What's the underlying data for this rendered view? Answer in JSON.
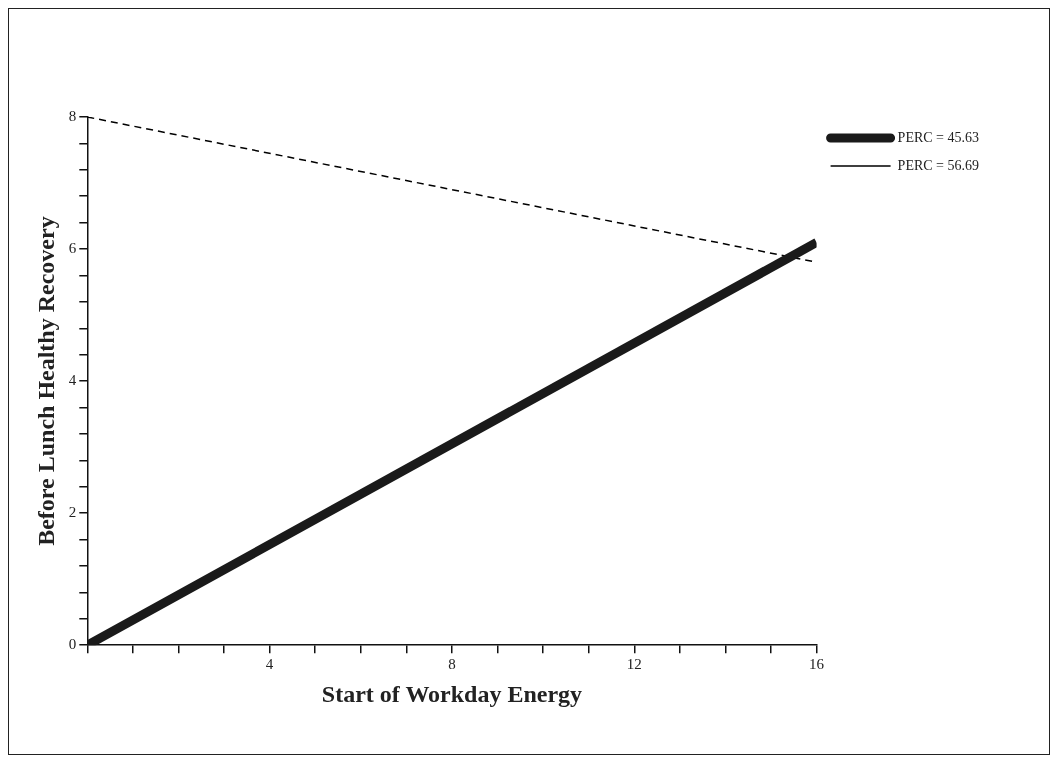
{
  "chart_data": {
    "type": "line",
    "xlabel": "Start of Workday Energy",
    "ylabel": "Before Lunch Healthy Recovery",
    "xlim": [
      0,
      16
    ],
    "xticks": [
      {
        "value": 0,
        "label": null
      },
      {
        "value": 1,
        "label": null
      },
      {
        "value": 2,
        "label": null
      },
      {
        "value": 3,
        "label": null
      },
      4,
      {
        "value": 5,
        "label": null
      },
      {
        "value": 6,
        "label": null
      },
      {
        "value": 7,
        "label": null
      },
      8,
      {
        "value": 9,
        "label": null
      },
      {
        "value": 10,
        "label": null
      },
      {
        "value": 11,
        "label": null
      },
      12,
      {
        "value": 13,
        "label": null
      },
      {
        "value": 14,
        "label": null
      },
      {
        "value": 15,
        "label": null
      },
      16
    ],
    "ylim": [
      0,
      8
    ],
    "yticks": [
      0,
      {
        "value": 0.4,
        "label": null
      },
      {
        "value": 0.8,
        "label": null
      },
      {
        "value": 1.2,
        "label": null
      },
      {
        "value": 1.6,
        "label": null
      },
      2,
      {
        "value": 2.4,
        "label": null
      },
      {
        "value": 2.8,
        "label": null
      },
      {
        "value": 3.2,
        "label": null
      },
      {
        "value": 3.6,
        "label": null
      },
      4,
      {
        "value": 4.4,
        "label": null
      },
      {
        "value": 4.8,
        "label": null
      },
      {
        "value": 5.2,
        "label": null
      },
      {
        "value": 5.6,
        "label": null
      },
      6,
      {
        "value": 6.4,
        "label": null
      },
      {
        "value": 6.8,
        "label": null
      },
      {
        "value": 7.2,
        "label": null
      },
      {
        "value": 7.6,
        "label": null
      },
      8
    ],
    "x": [
      0,
      16
    ],
    "grid": false,
    "legend": "top right",
    "marker": "none",
    "series": [
      {
        "name": "PERC = 45.63",
        "color": "#1a1a1a",
        "values": [
          0,
          6.1
        ],
        "line_style": "solid"
      },
      {
        "name": "PERC = 56.69",
        "color": "#000000",
        "values": [
          8,
          5.8
        ],
        "line_style": "dashed"
      }
    ]
  }
}
